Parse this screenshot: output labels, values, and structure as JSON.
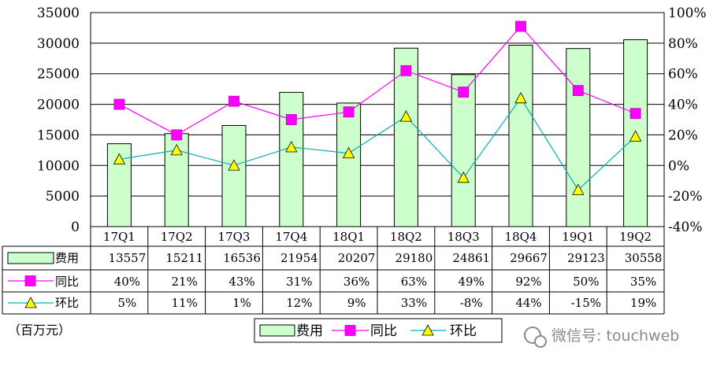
{
  "chart_data": {
    "type": "bar",
    "categories": [
      "17Q1",
      "17Q2",
      "17Q3",
      "17Q4",
      "18Q1",
      "18Q2",
      "18Q3",
      "18Q4",
      "19Q1",
      "19Q2"
    ],
    "series": [
      {
        "name": "费用",
        "type": "bar",
        "axis": "left",
        "values": [
          13557,
          15211,
          16536,
          21954,
          20207,
          29180,
          24861,
          29667,
          29123,
          30558
        ],
        "labels": [
          "13557",
          "15211",
          "16536",
          "21954",
          "20207",
          "29180",
          "24861",
          "29667",
          "29123",
          "30558"
        ]
      },
      {
        "name": "同比",
        "type": "line",
        "axis": "right",
        "values": [
          40,
          21,
          43,
          31,
          36,
          63,
          49,
          92,
          50,
          35
        ],
        "labels": [
          "40%",
          "21%",
          "43%",
          "31%",
          "36%",
          "63%",
          "49%",
          "92%",
          "50%",
          "35%"
        ]
      },
      {
        "name": "环比",
        "type": "line",
        "axis": "right",
        "values": [
          5,
          11,
          1,
          12,
          9,
          33,
          -8,
          44,
          -15,
          19
        ],
        "labels": [
          "5%",
          "11%",
          "1%",
          "12%",
          "9%",
          "33%",
          "-8%",
          "44%",
          "-15%",
          "19%"
        ]
      }
    ],
    "plot_values": {
      "同比": [
        40,
        20,
        42,
        30,
        35,
        62,
        48,
        91,
        49,
        34
      ],
      "环比": [
        4,
        10,
        0,
        12,
        8,
        32,
        -8,
        44,
        -16,
        19
      ]
    },
    "ylim": [
      0,
      35000
    ],
    "yticks": [
      "0",
      "5000",
      "10000",
      "15000",
      "20000",
      "25000",
      "30000",
      "35000"
    ],
    "y2lim": [
      -40,
      100
    ],
    "y2ticks": [
      "-40%",
      "-20%",
      "0%",
      "20%",
      "40%",
      "60%",
      "80%",
      "100%"
    ],
    "unit_label": "（百万元）",
    "legend_position": "bottom-center",
    "colors": {
      "bar_fill": "#ccffcc",
      "bar_stroke": "#000000",
      "yoy": "#ff00ff",
      "qoq": "#00b0b0",
      "triangle": "#ffff00"
    },
    "grid": true
  },
  "watermark": {
    "text": "微信号: touchweb",
    "icon": "wechat-icon"
  }
}
